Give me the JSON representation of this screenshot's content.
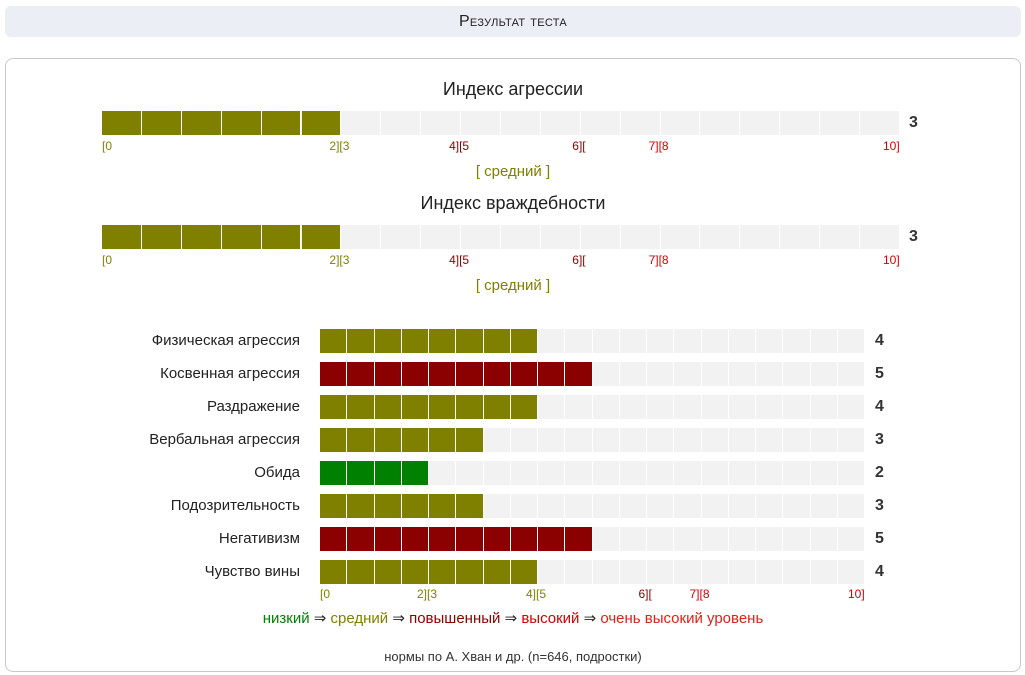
{
  "header": {
    "title": "Результат теста"
  },
  "colors": {
    "low": "#008000",
    "average": "#808000",
    "elevated": "#8b0000",
    "high": "#d10000",
    "very_high": "#e0201a",
    "track": "#f2f2f2"
  },
  "chart_data": [
    {
      "type": "bar",
      "title": "Индекс агрессии",
      "value": 3,
      "max": 10,
      "level_text": "[ средний ]",
      "color": "#808000",
      "ticks": [
        {
          "text": "[0",
          "pos": 0,
          "color": "#808000"
        },
        {
          "text": "2][3",
          "pos": 3,
          "color": "#808000"
        },
        {
          "text": "4][5",
          "pos": 4.5,
          "color": "#8b0000"
        },
        {
          "text": "6][",
          "pos": 6,
          "color": "#8b0000"
        },
        {
          "text": "7][8",
          "pos": 7,
          "color": "#d10000"
        },
        {
          "text": "10]",
          "pos": 10,
          "color": "#d10000"
        }
      ]
    },
    {
      "type": "bar",
      "title": "Индекс враждебности",
      "value": 3,
      "max": 10,
      "level_text": "[ средний ]",
      "color": "#808000",
      "ticks": [
        {
          "text": "[0",
          "pos": 0,
          "color": "#808000"
        },
        {
          "text": "2][3",
          "pos": 3,
          "color": "#808000"
        },
        {
          "text": "4][5",
          "pos": 4.5,
          "color": "#8b0000"
        },
        {
          "text": "6][",
          "pos": 6,
          "color": "#8b0000"
        },
        {
          "text": "7][8",
          "pos": 7,
          "color": "#d10000"
        },
        {
          "text": "10]",
          "pos": 10,
          "color": "#d10000"
        }
      ]
    },
    {
      "type": "bar",
      "max": 10,
      "categories": [
        "Физическая агрессия",
        "Косвенная агрессия",
        "Раздражение",
        "Вербальная агрессия",
        "Обида",
        "Подозрительность",
        "Негативизм",
        "Чувство вины"
      ],
      "values": [
        4,
        5,
        4,
        3,
        2,
        3,
        5,
        4
      ],
      "colors": [
        "#808000",
        "#8b0000",
        "#808000",
        "#808000",
        "#008000",
        "#808000",
        "#8b0000",
        "#808000"
      ],
      "ticks": [
        {
          "text": "[0",
          "pos": 0,
          "color": "#808000"
        },
        {
          "text": "2][3",
          "pos": 2,
          "color": "#808000"
        },
        {
          "text": "4][5",
          "pos": 4,
          "color": "#808000"
        },
        {
          "text": "6][",
          "pos": 6,
          "color": "#8b0000"
        },
        {
          "text": "7][8",
          "pos": 7,
          "color": "#d10000"
        },
        {
          "text": "10]",
          "pos": 10,
          "color": "#d10000"
        }
      ]
    }
  ],
  "legend": [
    {
      "text": "низкий",
      "color": "#008000"
    },
    {
      "text": " ⇒ ",
      "color": "#222222"
    },
    {
      "text": "средний",
      "color": "#808000"
    },
    {
      "text": " ⇒ ",
      "color": "#222222"
    },
    {
      "text": "повышенный",
      "color": "#8b0000"
    },
    {
      "text": " ⇒ ",
      "color": "#222222"
    },
    {
      "text": "высокий",
      "color": "#d10000"
    },
    {
      "text": " ⇒ ",
      "color": "#222222"
    },
    {
      "text": "очень высокий уровень",
      "color": "#e0201a"
    }
  ],
  "footnote": "нормы по А. Хван и др. (n=646, подростки)"
}
